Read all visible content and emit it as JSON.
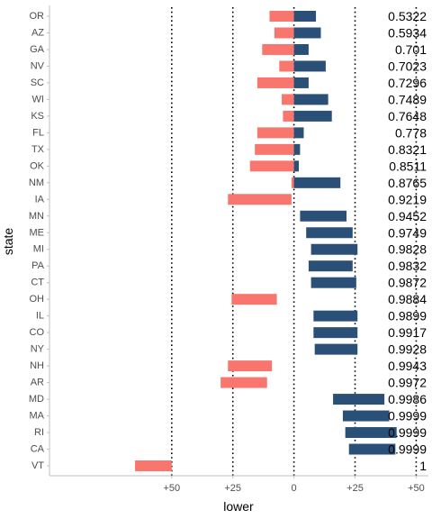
{
  "chart_data": {
    "type": "bar",
    "orientation": "horizontal",
    "xlabel": "lower",
    "ylabel": "state",
    "xlim": [
      -100,
      55
    ],
    "x_ticks": [
      {
        "value": -50,
        "label": "+50"
      },
      {
        "value": -25,
        "label": "+25"
      },
      {
        "value": 0,
        "label": "0"
      },
      {
        "value": 25,
        "label": "+25"
      },
      {
        "value": 50,
        "label": "+50"
      }
    ],
    "reference_lines": [
      -50,
      -25,
      0,
      25,
      50
    ],
    "colors": {
      "red": "#f8766d",
      "blue": "#2b5078",
      "axis": "#bfbfbf"
    },
    "rows": [
      {
        "state": "OR",
        "red": [
          -10,
          0
        ],
        "blue": [
          0,
          9
        ],
        "prob": "0.5322"
      },
      {
        "state": "AZ",
        "red": [
          -8,
          0
        ],
        "blue": [
          0,
          11
        ],
        "prob": "0.5934"
      },
      {
        "state": "GA",
        "red": [
          -13,
          0
        ],
        "blue": [
          0,
          6
        ],
        "prob": "0.701"
      },
      {
        "state": "NV",
        "red": [
          -6,
          0
        ],
        "blue": [
          0,
          13
        ],
        "prob": "0.7023"
      },
      {
        "state": "SC",
        "red": [
          -15,
          0
        ],
        "blue": [
          0,
          6
        ],
        "prob": "0.7296"
      },
      {
        "state": "WI",
        "red": [
          -5,
          0
        ],
        "blue": [
          0,
          14
        ],
        "prob": "0.7489"
      },
      {
        "state": "KS",
        "red": [
          -4.5,
          0
        ],
        "blue": [
          0,
          15.5
        ],
        "prob": "0.7648"
      },
      {
        "state": "FL",
        "red": [
          -15,
          0
        ],
        "blue": [
          0,
          4
        ],
        "prob": "0.778"
      },
      {
        "state": "TX",
        "red": [
          -16,
          0
        ],
        "blue": [
          0,
          2.5
        ],
        "prob": "0.8321"
      },
      {
        "state": "OK",
        "red": [
          -18,
          0
        ],
        "blue": [
          0,
          2
        ],
        "prob": "0.8511"
      },
      {
        "state": "NM",
        "red": [
          -1,
          0
        ],
        "blue": [
          0,
          19
        ],
        "prob": "0.8765"
      },
      {
        "state": "IA",
        "red": [
          -27,
          -1
        ],
        "blue": null,
        "prob": "0.9219"
      },
      {
        "state": "MN",
        "red": null,
        "blue": [
          2.5,
          21.5
        ],
        "prob": "0.9452"
      },
      {
        "state": "ME",
        "red": null,
        "blue": [
          5,
          24
        ],
        "prob": "0.9749"
      },
      {
        "state": "MI",
        "red": null,
        "blue": [
          7,
          26
        ],
        "prob": "0.9828"
      },
      {
        "state": "PA",
        "red": null,
        "blue": [
          6,
          24
        ],
        "prob": "0.9832"
      },
      {
        "state": "CT",
        "red": null,
        "blue": [
          7,
          25.5
        ],
        "prob": "0.9872"
      },
      {
        "state": "OH",
        "red": [
          -25.5,
          -7
        ],
        "blue": null,
        "prob": "0.9884"
      },
      {
        "state": "IL",
        "red": null,
        "blue": [
          8,
          26
        ],
        "prob": "0.9899"
      },
      {
        "state": "CO",
        "red": null,
        "blue": [
          8,
          26
        ],
        "prob": "0.9917"
      },
      {
        "state": "NY",
        "red": null,
        "blue": [
          8.5,
          26
        ],
        "prob": "0.9928"
      },
      {
        "state": "NH",
        "red": [
          -27,
          -9
        ],
        "blue": null,
        "prob": "0.9943"
      },
      {
        "state": "AR",
        "red": [
          -30,
          -11
        ],
        "blue": null,
        "prob": "0.9972"
      },
      {
        "state": "MD",
        "red": null,
        "blue": [
          16,
          37
        ],
        "prob": "0.9986"
      },
      {
        "state": "MA",
        "red": null,
        "blue": [
          20,
          39
        ],
        "prob": "0.9999"
      },
      {
        "state": "RI",
        "red": null,
        "blue": [
          21,
          42
        ],
        "prob": "0.9999"
      },
      {
        "state": "CA",
        "red": null,
        "blue": [
          22.5,
          41.5
        ],
        "prob": "0.9999"
      },
      {
        "state": "VT",
        "red": [
          -65,
          -50
        ],
        "blue": null,
        "prob": "1"
      }
    ]
  }
}
